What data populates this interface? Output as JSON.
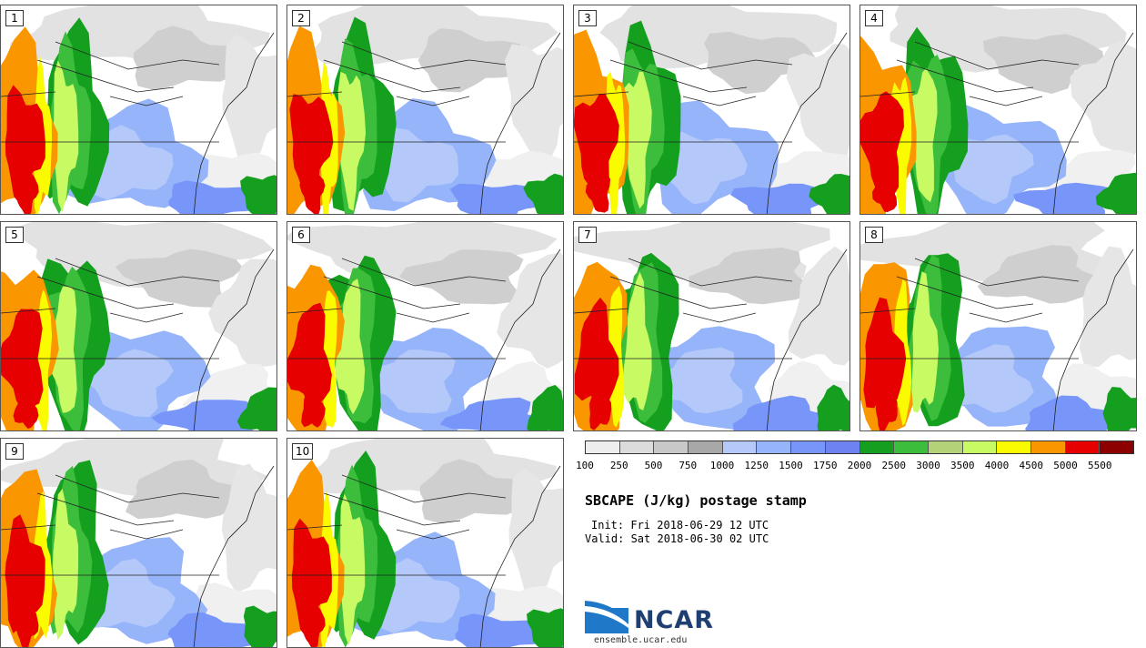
{
  "panels": [
    {
      "label": "1"
    },
    {
      "label": "2"
    },
    {
      "label": "3"
    },
    {
      "label": "4"
    },
    {
      "label": "5"
    },
    {
      "label": "6"
    },
    {
      "label": "7"
    },
    {
      "label": "8"
    },
    {
      "label": "9"
    },
    {
      "label": "10"
    }
  ],
  "colorbar": {
    "colors": [
      "#eeeeee",
      "#dcdcdc",
      "#c8c8c8",
      "#a8a8a8",
      "#b4c8fa",
      "#96b4fa",
      "#7896fa",
      "#6e82f0",
      "#14a01e",
      "#3cbe3c",
      "#b4d278",
      "#c8fa64",
      "#fafa00",
      "#fa9600",
      "#e60000",
      "#8c0000"
    ],
    "ticks": [
      "100",
      "250",
      "500",
      "750",
      "1000",
      "1250",
      "1500",
      "1750",
      "2000",
      "2500",
      "3000",
      "3500",
      "4000",
      "4500",
      "5000",
      "5500"
    ]
  },
  "title": "SBCAPE (J/kg) postage stamp",
  "init": "Init: Fri 2018-06-29 12 UTC",
  "valid": "Valid: Sat 2018-06-30 02 UTC",
  "logo": "NCAR",
  "url": "ensemble.ucar.edu"
}
